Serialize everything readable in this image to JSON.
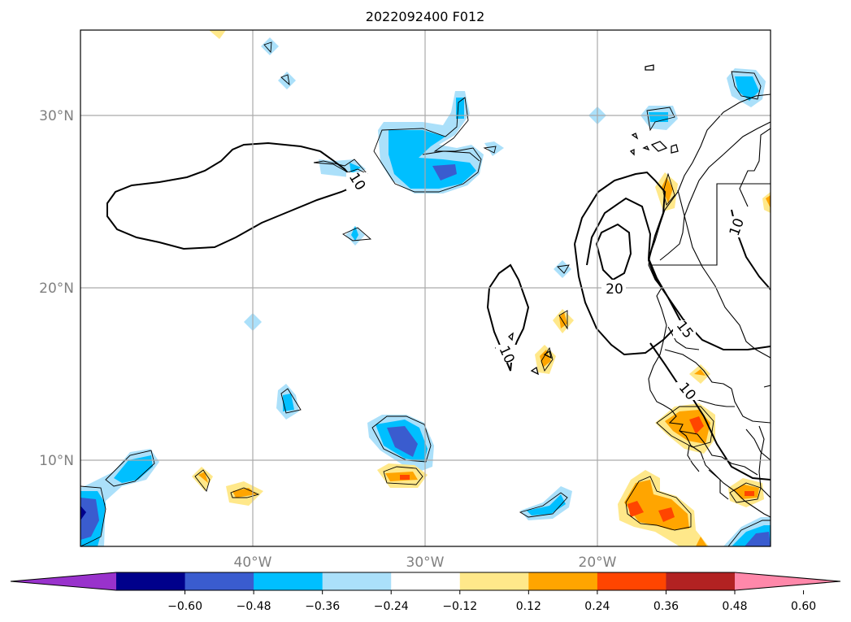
{
  "title": "2022092400 F012",
  "map": {
    "lon_labels": [
      "40°W",
      "30°W",
      "20°W"
    ],
    "lat_labels": [
      "30°N",
      "20°N",
      "10°N"
    ],
    "contour_labels": [
      "10",
      "10",
      "20",
      "15",
      "10",
      "10"
    ]
  },
  "colorbar": {
    "tick_labels": [
      "−0.60",
      "−0.48",
      "−0.36",
      "−0.24",
      "−0.12",
      "0.12",
      "0.24",
      "0.36",
      "0.48",
      "0.60"
    ],
    "colors": [
      "#9932cc",
      "#00008b",
      "#3a5ccf",
      "#00bfff",
      "#abe0fa",
      "#ffffff",
      "#ffe88a",
      "#ffa500",
      "#ff4500",
      "#b22222",
      "#ff88aa"
    ]
  }
}
